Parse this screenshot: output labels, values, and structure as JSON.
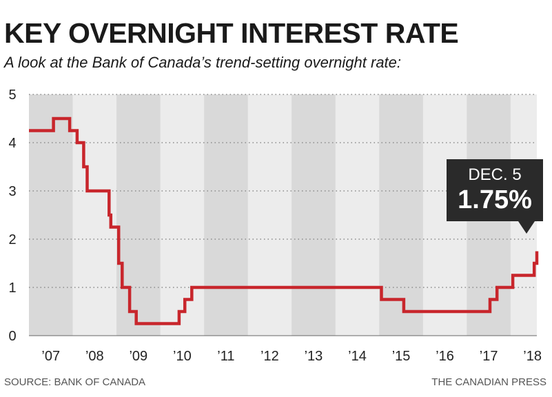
{
  "header": {
    "title": "KEY OVERNIGHT INTEREST RATE",
    "subtitle": "A look at the Bank of Canada’s trend-setting overnight rate:"
  },
  "footer": {
    "source": "SOURCE: BANK OF CANADA",
    "credit": "THE CANADIAN PRESS"
  },
  "callout": {
    "date": "DEC. 5",
    "value": "1.75%"
  },
  "colors": {
    "line": "#c8262c",
    "band_dark": "#d9d9d9",
    "band_light": "#ececec",
    "callout_bg": "#2a2a2a"
  },
  "chart_data": {
    "type": "line",
    "x_type": "year",
    "xlim": [
      2007.0,
      2018.6
    ],
    "ylim": [
      0,
      5
    ],
    "y_ticks": [
      0,
      1,
      2,
      3,
      4,
      5
    ],
    "x_ticks": [
      {
        "label": "’07",
        "value": 2007.5
      },
      {
        "label": "’08",
        "value": 2008.5
      },
      {
        "label": "’09",
        "value": 2009.5
      },
      {
        "label": "’10",
        "value": 2010.5
      },
      {
        "label": "’11",
        "value": 2011.5
      },
      {
        "label": "’12",
        "value": 2012.5
      },
      {
        "label": "’13",
        "value": 2013.5
      },
      {
        "label": "’14",
        "value": 2014.5
      },
      {
        "label": "’15",
        "value": 2015.5
      },
      {
        "label": "’16",
        "value": 2016.5
      },
      {
        "label": "’17",
        "value": 2017.5
      },
      {
        "label": "’18",
        "value": 2018.5
      }
    ],
    "bands": [
      2007,
      2009,
      2011,
      2013,
      2015,
      2017
    ],
    "grid": true,
    "step": true,
    "series": [
      {
        "points": [
          [
            2007.0,
            4.25
          ],
          [
            2007.56,
            4.5
          ],
          [
            2007.93,
            4.25
          ],
          [
            2008.1,
            4.0
          ],
          [
            2008.25,
            3.5
          ],
          [
            2008.33,
            3.0
          ],
          [
            2008.83,
            2.5
          ],
          [
            2008.87,
            2.25
          ],
          [
            2009.05,
            1.5
          ],
          [
            2009.13,
            1.0
          ],
          [
            2009.3,
            0.5
          ],
          [
            2009.45,
            0.25
          ],
          [
            2010.43,
            0.5
          ],
          [
            2010.56,
            0.75
          ],
          [
            2010.72,
            1.0
          ],
          [
            2015.05,
            0.75
          ],
          [
            2015.56,
            0.5
          ],
          [
            2017.53,
            0.75
          ],
          [
            2017.69,
            1.0
          ],
          [
            2018.05,
            1.25
          ],
          [
            2018.54,
            1.5
          ],
          [
            2018.76,
            1.75
          ],
          [
            2018.95,
            1.75
          ]
        ]
      }
    ]
  }
}
